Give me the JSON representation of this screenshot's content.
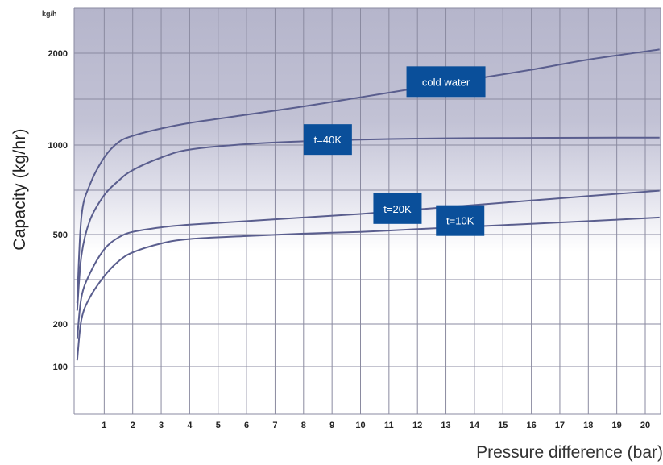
{
  "chart_data": {
    "type": "line",
    "xlabel": "Pressure difference (bar)",
    "ylabel": "Capacity (kg/hr)",
    "y_unit_label": "kg/h",
    "x_ticks": [
      "1",
      "2",
      "3",
      "4",
      "5",
      "6",
      "7",
      "8",
      "9",
      "10",
      "11",
      "12",
      "13",
      "14",
      "15",
      "16",
      "17",
      "18",
      "19",
      "20"
    ],
    "y_ticks": [
      "100",
      "200",
      "500",
      "1000",
      "2000"
    ],
    "xlim": [
      0,
      20.6
    ],
    "grid": true,
    "series": [
      {
        "name": "cold water",
        "color": "#5a5e8e",
        "x": [
          0.05,
          0.2,
          0.5,
          1,
          1.5,
          2,
          3,
          4,
          6,
          8,
          10,
          12,
          14,
          16,
          18,
          20.5
        ],
        "y": [
          270,
          600,
          780,
          930,
          1030,
          1100,
          1180,
          1240,
          1330,
          1420,
          1520,
          1620,
          1720,
          1820,
          1930,
          2040
        ]
      },
      {
        "name": "t=40K",
        "color": "#5a5e8e",
        "x": [
          0.05,
          0.2,
          0.5,
          1,
          1.5,
          2,
          3,
          4,
          6,
          8,
          10,
          12,
          14,
          16,
          18,
          20.5
        ],
        "y": [
          245,
          430,
          580,
          720,
          800,
          860,
          930,
          975,
          1010,
          1040,
          1060,
          1070,
          1075,
          1078,
          1080,
          1082
        ]
      },
      {
        "name": "t=20K",
        "color": "#5a5e8e",
        "x": [
          0.05,
          0.2,
          0.5,
          1,
          1.5,
          2,
          3,
          4,
          6,
          8,
          10,
          12,
          14,
          16,
          18,
          20.5
        ],
        "y": [
          165,
          290,
          370,
          450,
          490,
          515,
          540,
          555,
          575,
          595,
          615,
          640,
          665,
          690,
          715,
          745
        ]
      },
      {
        "name": "t=10K",
        "color": "#5a5e8e",
        "x": [
          0.05,
          0.2,
          0.5,
          1,
          1.5,
          2,
          3,
          4,
          6,
          8,
          10,
          12,
          14,
          16,
          18,
          20.5
        ],
        "y": [
          115,
          215,
          290,
          360,
          410,
          440,
          470,
          485,
          495,
          505,
          515,
          530,
          545,
          560,
          575,
          595
        ]
      }
    ],
    "labels": [
      {
        "text": "cold water",
        "x": 13.0,
        "y": 1690
      },
      {
        "text": "t=40K",
        "x": 8.85,
        "y": 1060
      },
      {
        "text": "t=20K",
        "x": 11.3,
        "y": 645
      },
      {
        "text": "t=10K",
        "x": 13.5,
        "y": 578
      }
    ]
  }
}
